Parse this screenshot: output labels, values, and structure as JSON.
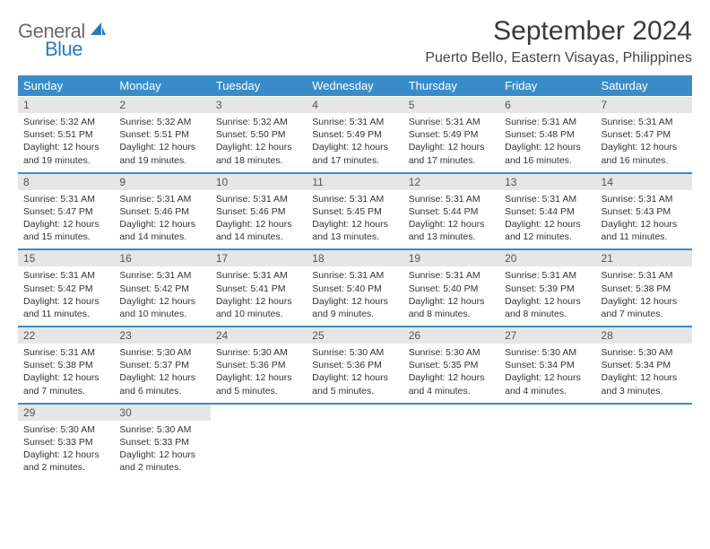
{
  "brand": {
    "part1": "General",
    "part2": "Blue"
  },
  "title": "September 2024",
  "location": "Puerto Bello, Eastern Visayas, Philippines",
  "colors": {
    "header_bg": "#3a8cc9",
    "header_text": "#ffffff",
    "daynum_bg": "#e6e6e6",
    "row_divider": "#3a8cc9",
    "logo_gray": "#6b6b6b",
    "logo_blue": "#2a7abf",
    "body_text": "#333333"
  },
  "days_of_week": [
    "Sunday",
    "Monday",
    "Tuesday",
    "Wednesday",
    "Thursday",
    "Friday",
    "Saturday"
  ],
  "weeks": [
    {
      "nums": [
        "1",
        "2",
        "3",
        "4",
        "5",
        "6",
        "7"
      ],
      "cells": [
        {
          "sunrise": "Sunrise: 5:32 AM",
          "sunset": "Sunset: 5:51 PM",
          "day1": "Daylight: 12 hours",
          "day2": "and 19 minutes."
        },
        {
          "sunrise": "Sunrise: 5:32 AM",
          "sunset": "Sunset: 5:51 PM",
          "day1": "Daylight: 12 hours",
          "day2": "and 19 minutes."
        },
        {
          "sunrise": "Sunrise: 5:32 AM",
          "sunset": "Sunset: 5:50 PM",
          "day1": "Daylight: 12 hours",
          "day2": "and 18 minutes."
        },
        {
          "sunrise": "Sunrise: 5:31 AM",
          "sunset": "Sunset: 5:49 PM",
          "day1": "Daylight: 12 hours",
          "day2": "and 17 minutes."
        },
        {
          "sunrise": "Sunrise: 5:31 AM",
          "sunset": "Sunset: 5:49 PM",
          "day1": "Daylight: 12 hours",
          "day2": "and 17 minutes."
        },
        {
          "sunrise": "Sunrise: 5:31 AM",
          "sunset": "Sunset: 5:48 PM",
          "day1": "Daylight: 12 hours",
          "day2": "and 16 minutes."
        },
        {
          "sunrise": "Sunrise: 5:31 AM",
          "sunset": "Sunset: 5:47 PM",
          "day1": "Daylight: 12 hours",
          "day2": "and 16 minutes."
        }
      ]
    },
    {
      "nums": [
        "8",
        "9",
        "10",
        "11",
        "12",
        "13",
        "14"
      ],
      "cells": [
        {
          "sunrise": "Sunrise: 5:31 AM",
          "sunset": "Sunset: 5:47 PM",
          "day1": "Daylight: 12 hours",
          "day2": "and 15 minutes."
        },
        {
          "sunrise": "Sunrise: 5:31 AM",
          "sunset": "Sunset: 5:46 PM",
          "day1": "Daylight: 12 hours",
          "day2": "and 14 minutes."
        },
        {
          "sunrise": "Sunrise: 5:31 AM",
          "sunset": "Sunset: 5:46 PM",
          "day1": "Daylight: 12 hours",
          "day2": "and 14 minutes."
        },
        {
          "sunrise": "Sunrise: 5:31 AM",
          "sunset": "Sunset: 5:45 PM",
          "day1": "Daylight: 12 hours",
          "day2": "and 13 minutes."
        },
        {
          "sunrise": "Sunrise: 5:31 AM",
          "sunset": "Sunset: 5:44 PM",
          "day1": "Daylight: 12 hours",
          "day2": "and 13 minutes."
        },
        {
          "sunrise": "Sunrise: 5:31 AM",
          "sunset": "Sunset: 5:44 PM",
          "day1": "Daylight: 12 hours",
          "day2": "and 12 minutes."
        },
        {
          "sunrise": "Sunrise: 5:31 AM",
          "sunset": "Sunset: 5:43 PM",
          "day1": "Daylight: 12 hours",
          "day2": "and 11 minutes."
        }
      ]
    },
    {
      "nums": [
        "15",
        "16",
        "17",
        "18",
        "19",
        "20",
        "21"
      ],
      "cells": [
        {
          "sunrise": "Sunrise: 5:31 AM",
          "sunset": "Sunset: 5:42 PM",
          "day1": "Daylight: 12 hours",
          "day2": "and 11 minutes."
        },
        {
          "sunrise": "Sunrise: 5:31 AM",
          "sunset": "Sunset: 5:42 PM",
          "day1": "Daylight: 12 hours",
          "day2": "and 10 minutes."
        },
        {
          "sunrise": "Sunrise: 5:31 AM",
          "sunset": "Sunset: 5:41 PM",
          "day1": "Daylight: 12 hours",
          "day2": "and 10 minutes."
        },
        {
          "sunrise": "Sunrise: 5:31 AM",
          "sunset": "Sunset: 5:40 PM",
          "day1": "Daylight: 12 hours",
          "day2": "and 9 minutes."
        },
        {
          "sunrise": "Sunrise: 5:31 AM",
          "sunset": "Sunset: 5:40 PM",
          "day1": "Daylight: 12 hours",
          "day2": "and 8 minutes."
        },
        {
          "sunrise": "Sunrise: 5:31 AM",
          "sunset": "Sunset: 5:39 PM",
          "day1": "Daylight: 12 hours",
          "day2": "and 8 minutes."
        },
        {
          "sunrise": "Sunrise: 5:31 AM",
          "sunset": "Sunset: 5:38 PM",
          "day1": "Daylight: 12 hours",
          "day2": "and 7 minutes."
        }
      ]
    },
    {
      "nums": [
        "22",
        "23",
        "24",
        "25",
        "26",
        "27",
        "28"
      ],
      "cells": [
        {
          "sunrise": "Sunrise: 5:31 AM",
          "sunset": "Sunset: 5:38 PM",
          "day1": "Daylight: 12 hours",
          "day2": "and 7 minutes."
        },
        {
          "sunrise": "Sunrise: 5:30 AM",
          "sunset": "Sunset: 5:37 PM",
          "day1": "Daylight: 12 hours",
          "day2": "and 6 minutes."
        },
        {
          "sunrise": "Sunrise: 5:30 AM",
          "sunset": "Sunset: 5:36 PM",
          "day1": "Daylight: 12 hours",
          "day2": "and 5 minutes."
        },
        {
          "sunrise": "Sunrise: 5:30 AM",
          "sunset": "Sunset: 5:36 PM",
          "day1": "Daylight: 12 hours",
          "day2": "and 5 minutes."
        },
        {
          "sunrise": "Sunrise: 5:30 AM",
          "sunset": "Sunset: 5:35 PM",
          "day1": "Daylight: 12 hours",
          "day2": "and 4 minutes."
        },
        {
          "sunrise": "Sunrise: 5:30 AM",
          "sunset": "Sunset: 5:34 PM",
          "day1": "Daylight: 12 hours",
          "day2": "and 4 minutes."
        },
        {
          "sunrise": "Sunrise: 5:30 AM",
          "sunset": "Sunset: 5:34 PM",
          "day1": "Daylight: 12 hours",
          "day2": "and 3 minutes."
        }
      ]
    },
    {
      "nums": [
        "29",
        "30",
        "",
        "",
        "",
        "",
        ""
      ],
      "cells": [
        {
          "sunrise": "Sunrise: 5:30 AM",
          "sunset": "Sunset: 5:33 PM",
          "day1": "Daylight: 12 hours",
          "day2": "and 2 minutes."
        },
        {
          "sunrise": "Sunrise: 5:30 AM",
          "sunset": "Sunset: 5:33 PM",
          "day1": "Daylight: 12 hours",
          "day2": "and 2 minutes."
        },
        null,
        null,
        null,
        null,
        null
      ]
    }
  ]
}
